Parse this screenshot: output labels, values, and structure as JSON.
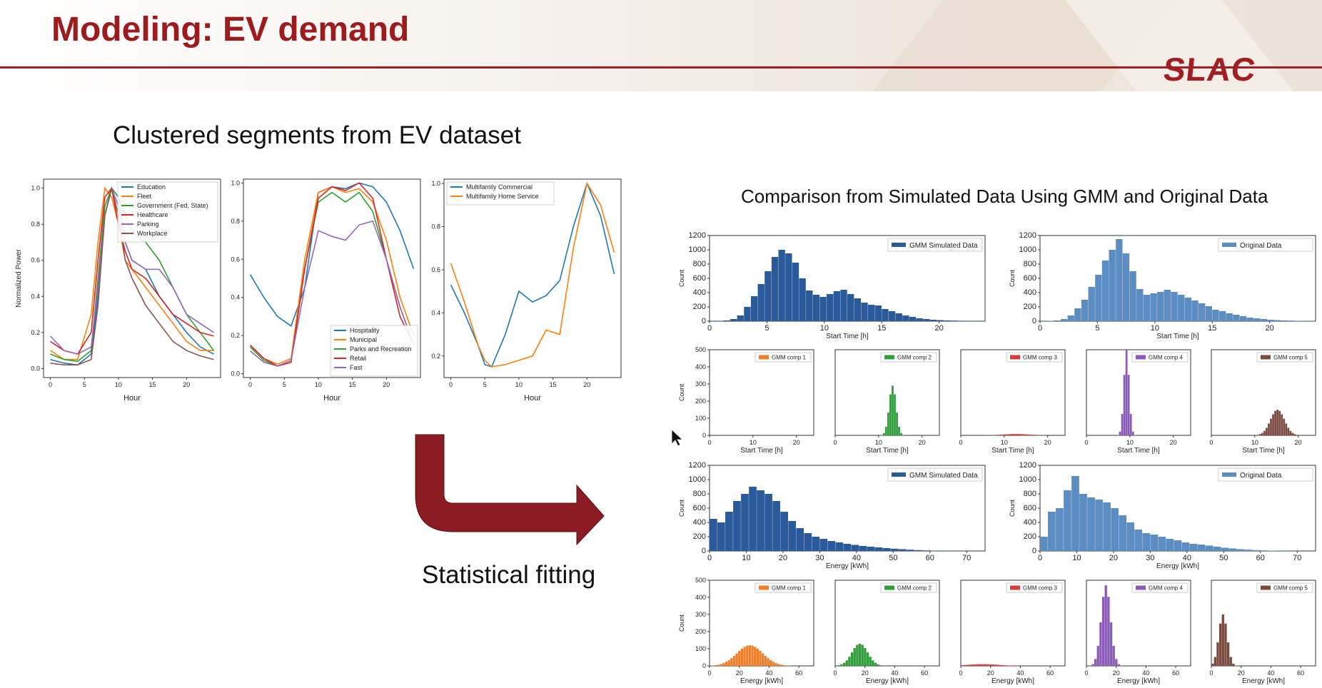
{
  "slide": {
    "title": "Modeling: EV demand",
    "logo": "SLAC",
    "left_heading": "Clustered segments from EV dataset",
    "right_heading": "Comparison from Simulated Data Using GMM and Original Data",
    "arrow_label": "Statistical fitting",
    "colors": {
      "accent": "#9b1b1f",
      "arrow": "#8b1c24"
    }
  },
  "chart_data": [
    {
      "type": "line",
      "xlabel": "Hour",
      "ylabel": "Normalized Power",
      "xlim": [
        -1,
        25
      ],
      "ylim": [
        -0.05,
        1.05
      ],
      "xticks": [
        "0",
        "5",
        "10",
        "15",
        "20"
      ],
      "yticks": [
        "0.0",
        "0.2",
        "0.4",
        "0.6",
        "0.8",
        "1.0"
      ],
      "legend": "top-right",
      "x": [
        0,
        2,
        4,
        6,
        7,
        8,
        9,
        10,
        11,
        12,
        14,
        16,
        18,
        20,
        22,
        24
      ],
      "series": [
        {
          "name": "Education",
          "color": "#1f77b4",
          "values": [
            0.05,
            0.03,
            0.02,
            0.08,
            0.4,
            0.85,
            1.0,
            0.95,
            0.7,
            0.6,
            0.55,
            0.4,
            0.3,
            0.2,
            0.12,
            0.08
          ]
        },
        {
          "name": "Fleet",
          "color": "#ff7f0e",
          "values": [
            0.1,
            0.05,
            0.05,
            0.3,
            0.7,
            1.0,
            0.95,
            0.8,
            0.6,
            0.55,
            0.45,
            0.35,
            0.25,
            0.15,
            0.1,
            0.1
          ]
        },
        {
          "name": "Government (Fed, State)",
          "color": "#2ca02c",
          "values": [
            0.08,
            0.05,
            0.04,
            0.1,
            0.5,
            0.9,
            1.0,
            0.95,
            0.85,
            0.75,
            0.7,
            0.6,
            0.45,
            0.3,
            0.2,
            0.1
          ]
        },
        {
          "name": "Healthcare",
          "color": "#d62728",
          "values": [
            0.15,
            0.1,
            0.08,
            0.2,
            0.6,
            0.95,
            1.0,
            0.8,
            0.65,
            0.55,
            0.5,
            0.4,
            0.3,
            0.25,
            0.2,
            0.18
          ]
        },
        {
          "name": "Parking",
          "color": "#9467bd",
          "values": [
            0.18,
            0.1,
            0.08,
            0.12,
            0.45,
            0.85,
            1.0,
            0.9,
            0.7,
            0.6,
            0.55,
            0.55,
            0.45,
            0.3,
            0.25,
            0.2
          ]
        },
        {
          "name": "Workplace",
          "color": "#8c564b",
          "values": [
            0.03,
            0.02,
            0.02,
            0.05,
            0.35,
            0.85,
            1.0,
            0.85,
            0.6,
            0.5,
            0.35,
            0.25,
            0.15,
            0.1,
            0.07,
            0.05
          ]
        }
      ]
    },
    {
      "type": "line",
      "xlabel": "Hour",
      "ylabel": "",
      "xlim": [
        -1,
        25
      ],
      "ylim": [
        -0.02,
        1.02
      ],
      "xticks": [
        "0",
        "5",
        "10",
        "15",
        "20"
      ],
      "yticks": [
        "0.0",
        "0.2",
        "0.4",
        "0.6",
        "0.8",
        "1.0"
      ],
      "legend": "bottom-right",
      "x": [
        0,
        2,
        4,
        6,
        8,
        10,
        12,
        14,
        16,
        18,
        20,
        22,
        24
      ],
      "series": [
        {
          "name": "Hospitality",
          "color": "#1f77b4",
          "values": [
            0.52,
            0.4,
            0.3,
            0.25,
            0.45,
            0.95,
            0.98,
            0.97,
            1.0,
            0.98,
            0.9,
            0.75,
            0.55
          ]
        },
        {
          "name": "Municipal",
          "color": "#ff7f0e",
          "values": [
            0.15,
            0.08,
            0.05,
            0.08,
            0.6,
            0.95,
            0.98,
            0.95,
            0.97,
            0.9,
            0.7,
            0.4,
            0.2
          ]
        },
        {
          "name": "Parks and Recreation",
          "color": "#2ca02c",
          "values": [
            0.14,
            0.07,
            0.04,
            0.06,
            0.55,
            0.9,
            0.95,
            0.9,
            0.95,
            0.85,
            0.6,
            0.35,
            0.15
          ]
        },
        {
          "name": "Retail",
          "color": "#d62728",
          "values": [
            0.15,
            0.08,
            0.04,
            0.06,
            0.55,
            0.92,
            0.98,
            0.96,
            1.0,
            0.92,
            0.6,
            0.3,
            0.15
          ]
        },
        {
          "name": "Fast",
          "color": "#9467bd",
          "values": [
            0.12,
            0.06,
            0.04,
            0.07,
            0.45,
            0.75,
            0.72,
            0.7,
            0.78,
            0.8,
            0.6,
            0.35,
            0.15
          ]
        }
      ]
    },
    {
      "type": "line",
      "xlabel": "Hour",
      "ylabel": "",
      "xlim": [
        -1,
        25
      ],
      "ylim": [
        0.1,
        1.02
      ],
      "xticks": [
        "0",
        "5",
        "10",
        "15",
        "20"
      ],
      "yticks": [
        "0.2",
        "0.4",
        "0.6",
        "0.8",
        "1.0"
      ],
      "legend": "top-left",
      "x": [
        0,
        2,
        4,
        5,
        6,
        8,
        10,
        12,
        14,
        16,
        18,
        20,
        22,
        24
      ],
      "series": [
        {
          "name": "Multifamily Commercial",
          "color": "#1f77b4",
          "values": [
            0.53,
            0.4,
            0.25,
            0.16,
            0.15,
            0.3,
            0.5,
            0.45,
            0.48,
            0.55,
            0.8,
            1.0,
            0.85,
            0.58
          ]
        },
        {
          "name": "Multifamily Home Service",
          "color": "#ff7f0e",
          "values": [
            0.63,
            0.45,
            0.25,
            0.18,
            0.15,
            0.16,
            0.18,
            0.2,
            0.32,
            0.3,
            0.7,
            1.0,
            0.9,
            0.68
          ]
        }
      ]
    },
    {
      "type": "bar",
      "name": "GMM Simulated Data",
      "xlabel": "Start Time [h]",
      "ylabel": "Count",
      "xlim": [
        0,
        24
      ],
      "ylim": [
        0,
        1200
      ],
      "xticks": [
        "0",
        "5",
        "10",
        "15",
        "20"
      ],
      "yticks": [
        "0",
        "200",
        "400",
        "600",
        "800",
        "1000",
        "1200"
      ],
      "color": "#2a5a9a",
      "legend": "top-right",
      "values": [
        2,
        5,
        10,
        30,
        80,
        200,
        350,
        520,
        700,
        900,
        1000,
        950,
        820,
        600,
        430,
        370,
        340,
        380,
        420,
        440,
        380,
        320,
        260,
        230,
        220,
        170,
        140,
        110,
        80,
        60,
        40,
        30,
        20,
        15,
        10,
        8,
        6,
        4,
        3,
        2
      ]
    },
    {
      "type": "bar",
      "name": "Original Data",
      "xlabel": "Start Time [h]",
      "ylabel": "Count",
      "xlim": [
        0,
        24
      ],
      "ylim": [
        0,
        1200
      ],
      "xticks": [
        "0",
        "5",
        "10",
        "15",
        "20"
      ],
      "yticks": [
        "0",
        "200",
        "400",
        "600",
        "800",
        "1000",
        "1200"
      ],
      "color": "#5b8cc2",
      "legend": "top-right",
      "values": [
        2,
        5,
        10,
        30,
        80,
        180,
        300,
        480,
        650,
        850,
        1000,
        1150,
        950,
        700,
        450,
        370,
        390,
        410,
        440,
        410,
        370,
        330,
        290,
        250,
        210,
        160,
        140,
        110,
        90,
        70,
        50,
        40,
        30,
        20,
        15,
        10,
        8,
        5,
        3,
        2
      ]
    },
    {
      "type": "bar",
      "name": "GMM comp 1",
      "xlabel": "Start Time [h]",
      "ylabel": "Count",
      "xlim": [
        0,
        24
      ],
      "ylim": [
        0,
        500
      ],
      "xticks": [
        "0",
        "10",
        "20"
      ],
      "yticks": [
        "0",
        "100",
        "200",
        "300",
        "400",
        "500"
      ],
      "color": "#f07f2a",
      "legend": "top-right",
      "values": [
        0,
        0,
        0,
        0,
        0,
        0,
        0,
        0,
        0,
        0,
        0,
        0,
        0,
        0,
        0,
        0,
        0,
        0,
        0,
        0,
        0,
        0,
        0,
        0,
        0,
        0,
        0,
        0,
        0,
        0,
        0,
        0,
        0,
        0,
        0,
        0,
        0,
        0,
        0,
        0,
        0,
        0,
        0,
        0,
        0,
        0,
        0,
        0,
        0,
        0,
        0,
        0,
        0,
        0,
        0,
        0,
        0,
        0,
        0,
        0,
        0,
        0,
        0,
        0,
        0,
        0,
        0,
        0,
        0,
        0,
        0,
        0,
        0,
        0,
        0,
        0,
        0,
        0,
        0,
        0
      ]
    },
    {
      "type": "bar",
      "name": "GMM comp 2",
      "xlabel": "Start Time [h]",
      "ylabel": "",
      "xlim": [
        0,
        24
      ],
      "ylim": [
        0,
        500
      ],
      "xticks": [
        "0",
        "10",
        "20"
      ],
      "yticks": [],
      "color": "#2f9e3a",
      "legend": "top-right",
      "values": []
    },
    {
      "type": "bar",
      "name": "GMM comp 3",
      "xlabel": "Start Time [h]",
      "ylabel": "",
      "xlim": [
        0,
        24
      ],
      "ylim": [
        0,
        500
      ],
      "xticks": [
        "0",
        "10",
        "20"
      ],
      "yticks": [],
      "color": "#d43b3b",
      "legend": "top-right",
      "values": []
    },
    {
      "type": "bar",
      "name": "GMM comp 4",
      "xlabel": "Start Time [h]",
      "ylabel": "",
      "xlim": [
        0,
        24
      ],
      "ylim": [
        0,
        500
      ],
      "xticks": [
        "0",
        "10",
        "20"
      ],
      "yticks": [],
      "color": "#8a5cb8",
      "legend": "top-right",
      "values": []
    },
    {
      "type": "bar",
      "name": "GMM comp 5",
      "xlabel": "Start Time [h]",
      "ylabel": "",
      "xlim": [
        0,
        24
      ],
      "ylim": [
        0,
        500
      ],
      "xticks": [
        "0",
        "10",
        "20"
      ],
      "yticks": [],
      "color": "#7a4a40",
      "legend": "top-right",
      "values": []
    },
    {
      "type": "bar",
      "name": "GMM Simulated Data",
      "xlabel": "Energy [kWh]",
      "ylabel": "Count",
      "xlim": [
        0,
        75
      ],
      "ylim": [
        0,
        1200
      ],
      "xticks": [
        "0",
        "10",
        "20",
        "30",
        "40",
        "50",
        "60",
        "70"
      ],
      "yticks": [
        "0",
        "200",
        "400",
        "600",
        "800",
        "1000",
        "1200"
      ],
      "color": "#2a5a9a",
      "legend": "top-right",
      "values": [
        450,
        400,
        550,
        700,
        800,
        900,
        850,
        800,
        700,
        550,
        420,
        320,
        250,
        200,
        170,
        140,
        120,
        100,
        85,
        70,
        60,
        50,
        40,
        32,
        25,
        18,
        12,
        8,
        5,
        3,
        2,
        1,
        1,
        0,
        0
      ]
    },
    {
      "type": "bar",
      "name": "Original Data",
      "xlabel": "Energy [kWh]",
      "ylabel": "Count",
      "xlim": [
        0,
        75
      ],
      "ylim": [
        0,
        1200
      ],
      "xticks": [
        "0",
        "10",
        "20",
        "30",
        "40",
        "50",
        "60",
        "70"
      ],
      "yticks": [
        "0",
        "200",
        "400",
        "600",
        "800",
        "1000",
        "1200"
      ],
      "color": "#5b8cc2",
      "legend": "top-right",
      "values": [
        200,
        550,
        600,
        850,
        1050,
        800,
        750,
        720,
        680,
        600,
        500,
        400,
        300,
        250,
        230,
        200,
        170,
        150,
        120,
        100,
        90,
        75,
        60,
        45,
        35,
        25,
        18,
        12,
        8,
        5,
        3,
        2,
        1,
        0,
        0
      ]
    },
    {
      "type": "bar",
      "name": "GMM comp 1",
      "xlabel": "Energy [kWh]",
      "ylabel": "Count",
      "xlim": [
        0,
        70
      ],
      "ylim": [
        0,
        500
      ],
      "xticks": [
        "0",
        "20",
        "40",
        "60"
      ],
      "yticks": [
        "0",
        "100",
        "200",
        "300",
        "400",
        "500"
      ],
      "color": "#f07f2a",
      "legend": "top-right",
      "values": []
    },
    {
      "type": "bar",
      "name": "GMM comp 2",
      "xlabel": "Energy [kWh]",
      "ylabel": "",
      "xlim": [
        0,
        70
      ],
      "ylim": [
        0,
        500
      ],
      "xticks": [
        "0",
        "20",
        "40",
        "60"
      ],
      "yticks": [],
      "color": "#2f9e3a",
      "legend": "top-right",
      "values": []
    },
    {
      "type": "bar",
      "name": "GMM comp 3",
      "xlabel": "Energy [kWh]",
      "ylabel": "",
      "xlim": [
        0,
        70
      ],
      "ylim": [
        0,
        500
      ],
      "xticks": [
        "0",
        "20",
        "40",
        "60"
      ],
      "yticks": [],
      "color": "#d43b3b",
      "legend": "top-right",
      "values": []
    },
    {
      "type": "bar",
      "name": "GMM comp 4",
      "xlabel": "Energy [kWh]",
      "ylabel": "",
      "xlim": [
        0,
        70
      ],
      "ylim": [
        0,
        500
      ],
      "xticks": [
        "0",
        "20",
        "40",
        "60"
      ],
      "yticks": [],
      "color": "#8a5cb8",
      "legend": "top-right",
      "values": []
    },
    {
      "type": "bar",
      "name": "GMM comp 5",
      "xlabel": "Energy [kWh]",
      "ylabel": "",
      "xlim": [
        0,
        70
      ],
      "ylim": [
        0,
        500
      ],
      "xticks": [
        "0",
        "20",
        "40",
        "60"
      ],
      "yticks": [],
      "color": "#7a4a40",
      "legend": "top-right",
      "values": []
    }
  ]
}
